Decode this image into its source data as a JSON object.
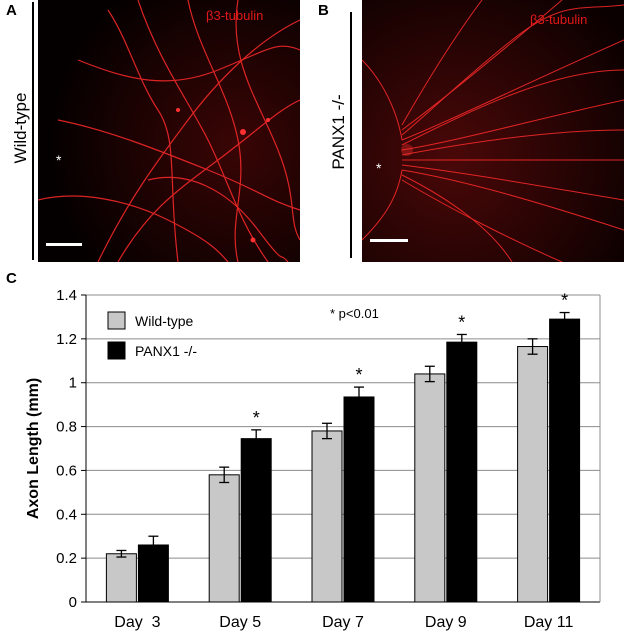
{
  "panels": {
    "a": {
      "letter": "A",
      "genotype_label": "Wild-type",
      "stain_label": "β3-tubulin",
      "asterisk": "*"
    },
    "b": {
      "letter": "B",
      "genotype_label": "PANX1 -/-",
      "stain_label": "β3-tubulin",
      "asterisk": "*"
    },
    "c": {
      "letter": "C"
    }
  },
  "colors": {
    "stain": "#e01818",
    "wildtype_bar": "#c8c8c8",
    "panx1_bar": "#000000"
  },
  "chart_data": {
    "type": "bar",
    "categories": [
      "Day  3",
      "Day 5",
      "Day 7",
      "Day 9",
      "Day 11"
    ],
    "series": [
      {
        "name": "Wild-type",
        "values": [
          0.22,
          0.58,
          0.78,
          1.04,
          1.165
        ],
        "errors": [
          0.015,
          0.035,
          0.035,
          0.035,
          0.035
        ],
        "color": "#c8c8c8"
      },
      {
        "name": "PANX1 -/-",
        "values": [
          0.26,
          0.745,
          0.935,
          1.185,
          1.29
        ],
        "errors": [
          0.04,
          0.04,
          0.045,
          0.035,
          0.03
        ],
        "color": "#000000"
      }
    ],
    "significance_marker": "*",
    "significant": [
      false,
      true,
      true,
      true,
      true
    ],
    "annotation": "* p<0.01",
    "ylabel": "Axon Length (mm)",
    "xlabel": "",
    "ylim": [
      0,
      1.4
    ],
    "yticks": [
      0,
      0.2,
      0.4,
      0.6,
      0.8,
      1,
      1.2,
      1.4
    ],
    "ytick_labels": [
      "0",
      "0.2",
      "0.4",
      "0.6",
      "0.8",
      "1",
      "1.2",
      "1.4"
    ],
    "grid": true,
    "legend_position": "top-left"
  }
}
